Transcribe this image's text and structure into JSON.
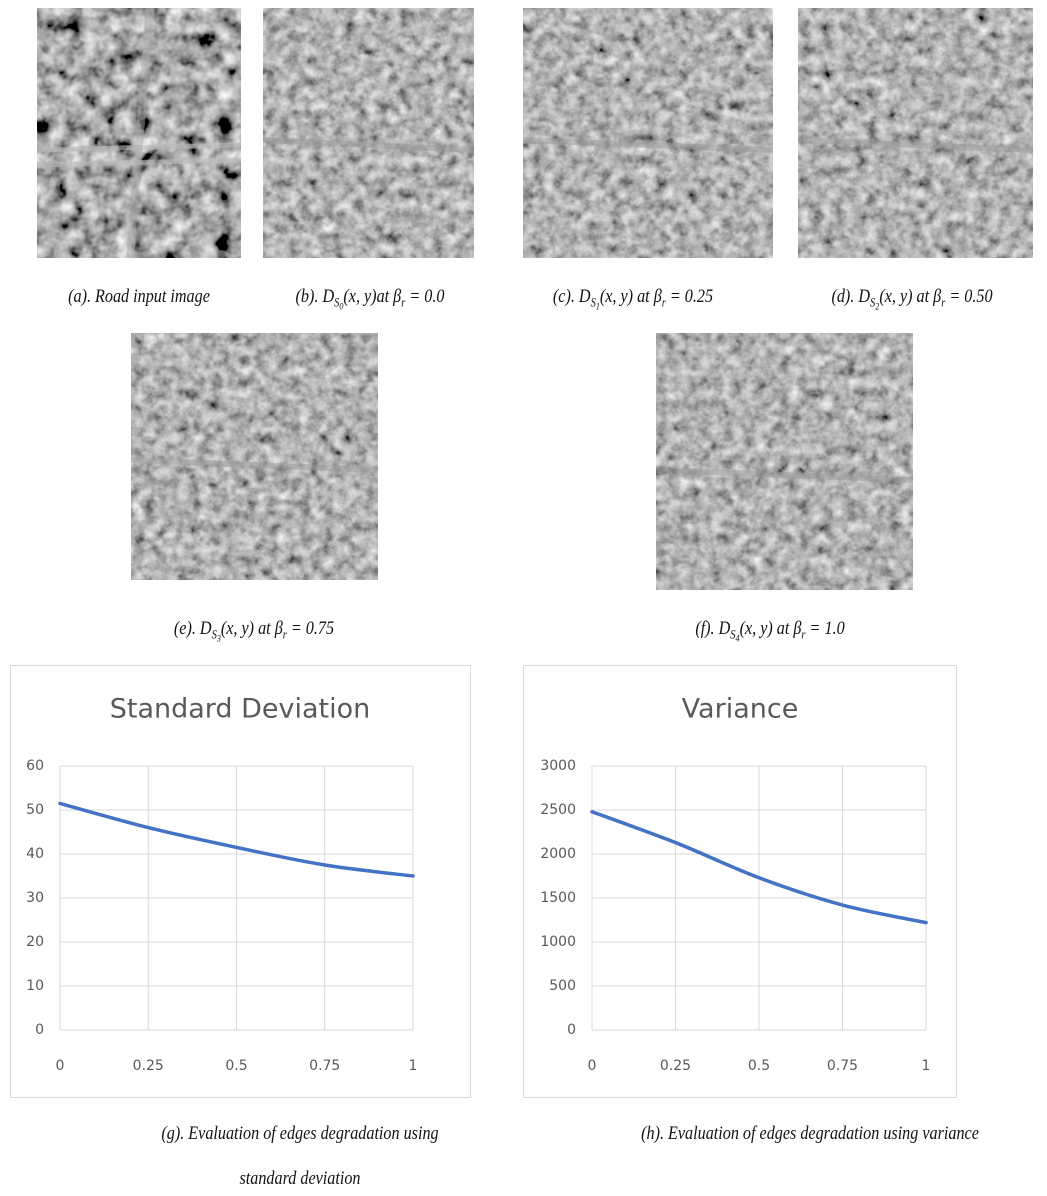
{
  "figures": [
    {
      "caption": [
        {
          "text": "(a). Road input image"
        }
      ]
    },
    {
      "caption": [
        {
          "text": "(b). D"
        },
        {
          "text": "S",
          "level": 1
        },
        {
          "text": "0",
          "level": 2
        },
        {
          "text": "(x, y)at β"
        },
        {
          "text": "r",
          "level": 1
        },
        {
          "text": " = 0.0"
        }
      ]
    },
    {
      "caption": [
        {
          "text": "(c). D"
        },
        {
          "text": "S",
          "level": 1
        },
        {
          "text": "1",
          "level": 2
        },
        {
          "text": "(x, y) at β"
        },
        {
          "text": "r",
          "level": 1
        },
        {
          "text": " = 0.25"
        }
      ]
    },
    {
      "caption": [
        {
          "text": "(d). D"
        },
        {
          "text": "S",
          "level": 1
        },
        {
          "text": "2",
          "level": 2
        },
        {
          "text": "(x, y) at β"
        },
        {
          "text": "r",
          "level": 1
        },
        {
          "text": " = 0.50"
        }
      ]
    },
    {
      "caption": [
        {
          "text": "(e). D"
        },
        {
          "text": "S",
          "level": 1
        },
        {
          "text": "3",
          "level": 2
        },
        {
          "text": "(x, y) at β"
        },
        {
          "text": "r",
          "level": 1
        },
        {
          "text": " = 0.75"
        }
      ]
    },
    {
      "caption": [
        {
          "text": "(f). D"
        },
        {
          "text": "S",
          "level": 1
        },
        {
          "text": "4",
          "level": 2
        },
        {
          "text": "(x, y) at β"
        },
        {
          "text": "r",
          "level": 1
        },
        {
          "text": " = 1.0"
        }
      ]
    }
  ],
  "chart_data": [
    {
      "type": "line",
      "title": "Standard Deviation",
      "x": [
        0,
        0.25,
        0.5,
        0.75,
        1
      ],
      "values": [
        51.5,
        46,
        41.5,
        37.5,
        35
      ],
      "color": "#4472c4",
      "xlim": [
        0,
        1
      ],
      "ylim": [
        0,
        60
      ],
      "xticks": [
        0,
        0.25,
        0.5,
        0.75,
        1
      ],
      "yticks": [
        0,
        10,
        20,
        30,
        40,
        50,
        60
      ],
      "grid": true
    },
    {
      "type": "line",
      "title": "Variance",
      "x": [
        0,
        0.25,
        0.5,
        0.75,
        1
      ],
      "values": [
        2480,
        2130,
        1730,
        1420,
        1220
      ],
      "color": "#4472c4",
      "xlim": [
        0,
        1
      ],
      "ylim": [
        0,
        3000
      ],
      "xticks": [
        0,
        0.25,
        0.5,
        0.75,
        1
      ],
      "yticks": [
        0,
        500,
        1000,
        1500,
        2000,
        2500,
        3000
      ],
      "grid": true
    }
  ],
  "chart_captions": [
    {
      "lines": [
        "(g). Evaluation of edges degradation using",
        "standard deviation"
      ]
    },
    {
      "lines": [
        "(h). Evaluation of edges degradation using variance"
      ]
    }
  ]
}
